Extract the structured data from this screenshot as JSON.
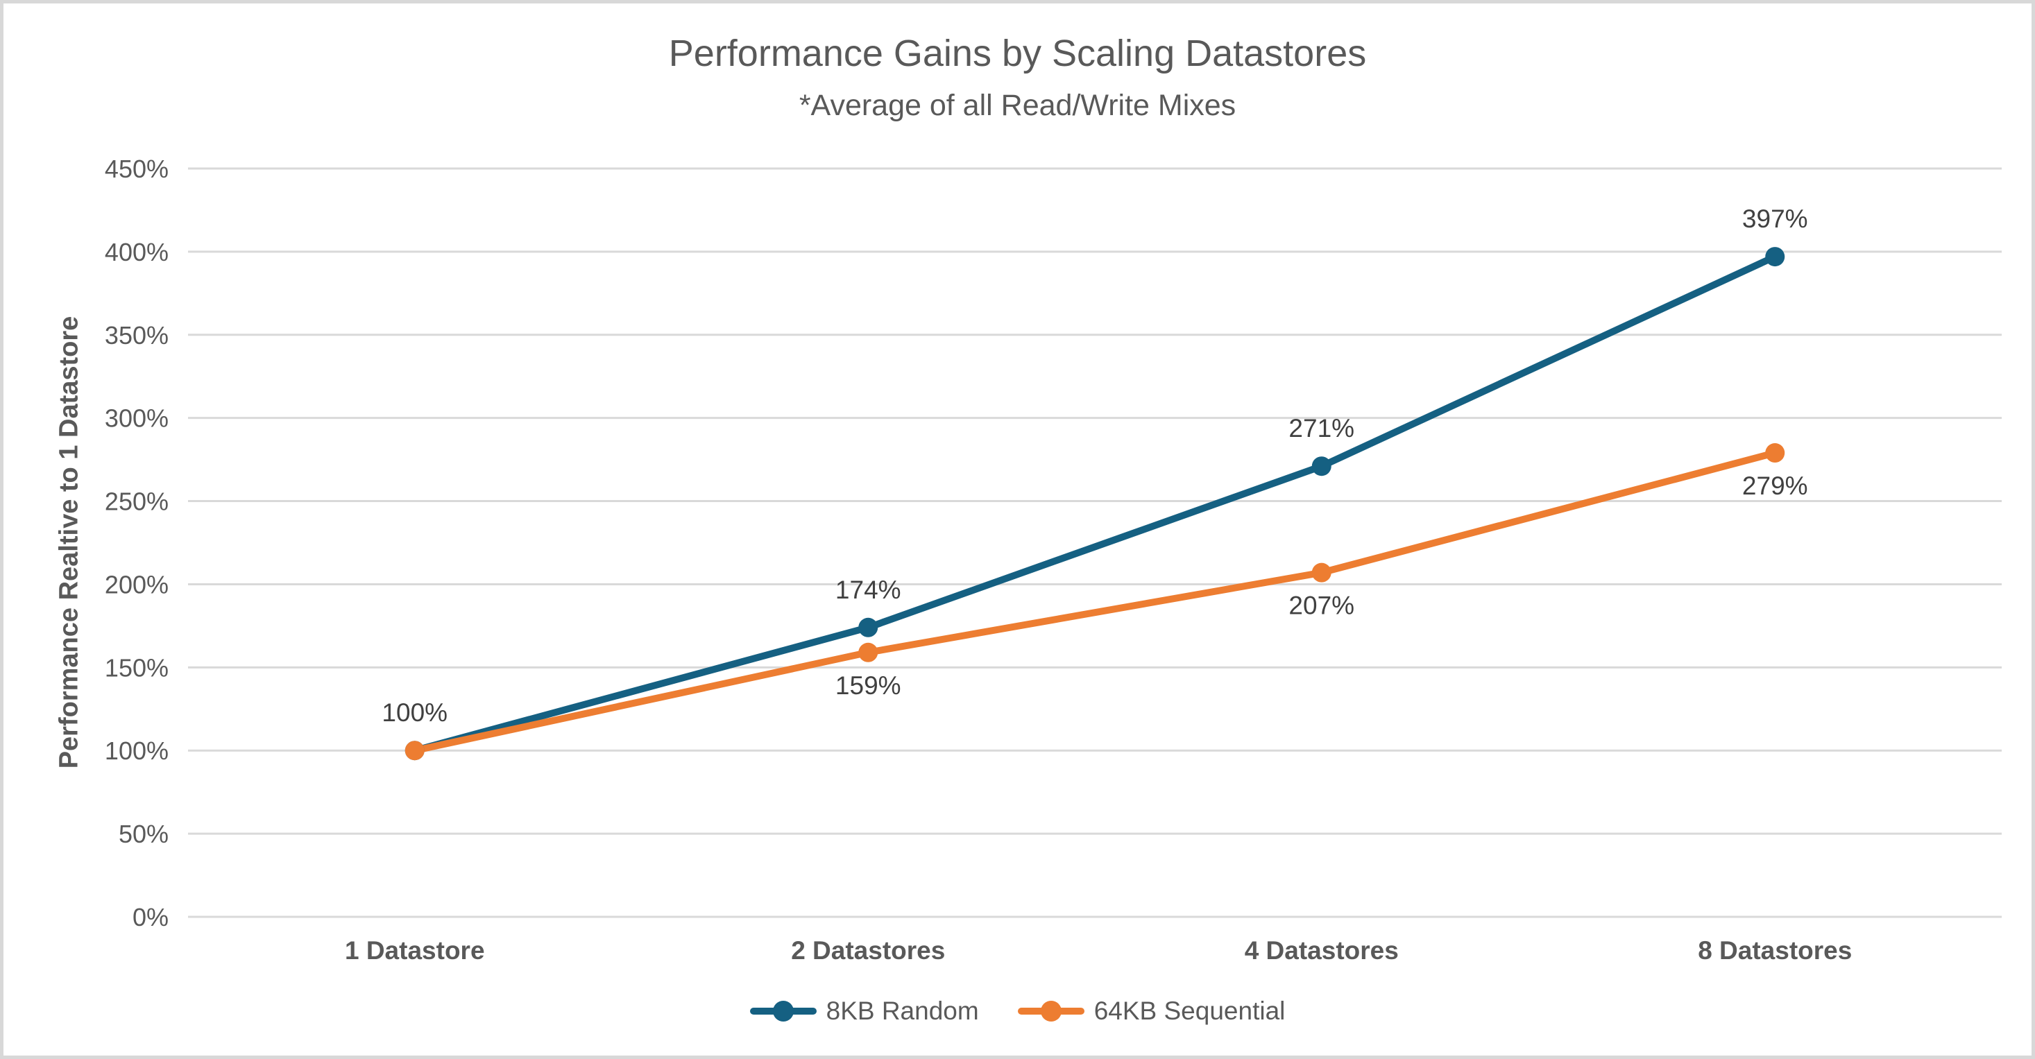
{
  "frame": {
    "background": "#FFFFFF",
    "border_color": "#D8D8D8"
  },
  "chart_data": {
    "type": "line",
    "title": "Performance Gains by Scaling Datastores",
    "subtitle": "*Average of all Read/Write Mixes",
    "xlabel": "",
    "ylabel": "Performance Realtive to 1 Datastore",
    "categories": [
      "1 Datastore",
      "2 Datastores",
      "4 Datastores",
      "8 Datastores"
    ],
    "series": [
      {
        "name": "8KB Random",
        "color": "#156082",
        "values": [
          100,
          174,
          271,
          397
        ],
        "data_labels": [
          "100%",
          "174%",
          "271%",
          "397%"
        ],
        "label_position": "above"
      },
      {
        "name": "64KB Sequential",
        "color": "#ED7D31",
        "values": [
          100,
          159,
          207,
          279
        ],
        "data_labels": [
          null,
          "159%",
          "207%",
          "279%"
        ],
        "label_position": "below"
      }
    ],
    "y_axis": {
      "min": 0,
      "max": 450,
      "step": 50,
      "tick_labels": [
        "0%",
        "50%",
        "100%",
        "150%",
        "200%",
        "250%",
        "300%",
        "350%",
        "400%",
        "450%"
      ]
    },
    "grid": true,
    "legend_position": "bottom",
    "colors": {
      "gridline": "#D9D9D9",
      "tick_text": "#595959",
      "category_text": "#595959",
      "data_label_text": "#404040"
    }
  }
}
